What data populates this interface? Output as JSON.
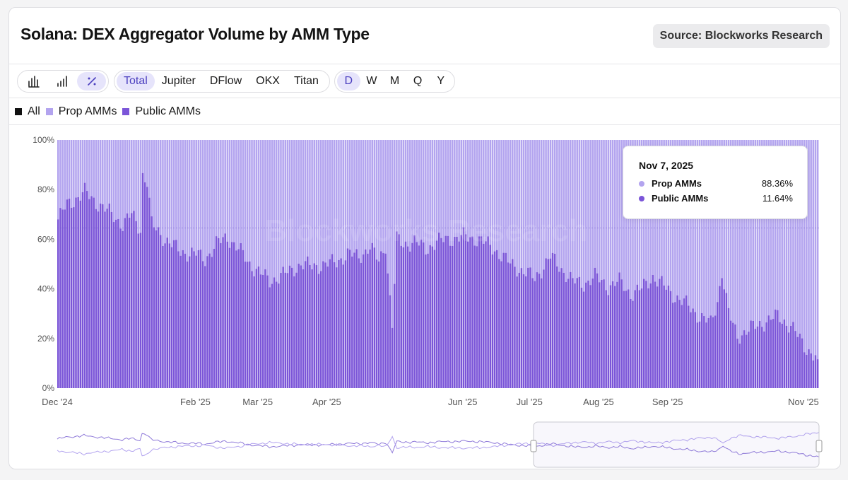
{
  "header": {
    "title": "Solana: DEX Aggregator Volume by AMM Type",
    "source": "Source: Blockworks Research"
  },
  "toolbar": {
    "chart_type_icons": [
      {
        "icon": "bar-chart-icon",
        "active": false
      },
      {
        "icon": "stacked-bar-icon",
        "active": false
      },
      {
        "icon": "percent-icon",
        "active": true
      }
    ],
    "aggregators": [
      {
        "label": "Total",
        "active": true
      },
      {
        "label": "Jupiter",
        "active": false
      },
      {
        "label": "DFlow",
        "active": false
      },
      {
        "label": "OKX",
        "active": false
      },
      {
        "label": "Titan",
        "active": false
      }
    ],
    "intervals": [
      {
        "label": "D",
        "active": true
      },
      {
        "label": "W",
        "active": false
      },
      {
        "label": "M",
        "active": false
      },
      {
        "label": "Q",
        "active": false
      },
      {
        "label": "Y",
        "active": false
      }
    ]
  },
  "legend": [
    {
      "label": "All",
      "color": "#111111"
    },
    {
      "label": "Prop AMMs",
      "color": "#b3a4ef"
    },
    {
      "label": "Public AMMs",
      "color": "#7b55d8"
    }
  ],
  "tooltip": {
    "date": "Nov 7, 2025",
    "rows": [
      {
        "name": "Prop AMMs",
        "value": "88.36%",
        "color": "#b3a4ef"
      },
      {
        "name": "Public AMMs",
        "value": "11.64%",
        "color": "#7b55d8"
      }
    ]
  },
  "watermark": "Blockworks Research",
  "chart_data": {
    "type": "bar",
    "stacked": true,
    "normalized_percent": true,
    "x_start": "2024-12-01",
    "x_end": "2025-11-07",
    "x_ticks": [
      "Dec '24",
      "Feb '25",
      "Mar '25",
      "Apr '25",
      "Jun '25",
      "Jul '25",
      "Aug '25",
      "Sep '25",
      "Nov '25"
    ],
    "x_tick_dates": [
      "2024-12-01",
      "2025-02-01",
      "2025-03-01",
      "2025-04-01",
      "2025-06-01",
      "2025-07-01",
      "2025-08-01",
      "2025-09-01",
      "2025-11-01"
    ],
    "y_ticks": [
      "0%",
      "20%",
      "40%",
      "60%",
      "80%",
      "100%"
    ],
    "ylim": [
      0,
      100
    ],
    "grid": false,
    "legend_position": "top-left",
    "series": [
      {
        "name": "Public AMMs",
        "color": "#7b55d8",
        "role": "bottom"
      },
      {
        "name": "Prop AMMs",
        "color": "#b3a4ef",
        "role": "top"
      }
    ],
    "public_amms_pct_anchors": [
      [
        "2024-12-01",
        68
      ],
      [
        "2024-12-05",
        74
      ],
      [
        "2024-12-10",
        77
      ],
      [
        "2024-12-13",
        79
      ],
      [
        "2024-12-18",
        75
      ],
      [
        "2024-12-25",
        70
      ],
      [
        "2024-12-30",
        66
      ],
      [
        "2025-01-03",
        70
      ],
      [
        "2025-01-07",
        64
      ],
      [
        "2025-01-08",
        86
      ],
      [
        "2025-01-10",
        83
      ],
      [
        "2025-01-12",
        66
      ],
      [
        "2025-01-18",
        60
      ],
      [
        "2025-01-25",
        55
      ],
      [
        "2025-02-01",
        54
      ],
      [
        "2025-02-05",
        52
      ],
      [
        "2025-02-10",
        58
      ],
      [
        "2025-02-15",
        61
      ],
      [
        "2025-02-20",
        56
      ],
      [
        "2025-02-25",
        50
      ],
      [
        "2025-03-01",
        47
      ],
      [
        "2025-03-06",
        43
      ],
      [
        "2025-03-10",
        45
      ],
      [
        "2025-03-15",
        47
      ],
      [
        "2025-03-20",
        50
      ],
      [
        "2025-03-25",
        49
      ],
      [
        "2025-04-01",
        50
      ],
      [
        "2025-04-05",
        51
      ],
      [
        "2025-04-10",
        54
      ],
      [
        "2025-04-15",
        53
      ],
      [
        "2025-04-20",
        57
      ],
      [
        "2025-04-24",
        51
      ],
      [
        "2025-04-27",
        58
      ],
      [
        "2025-04-30",
        25
      ],
      [
        "2025-05-02",
        60
      ],
      [
        "2025-05-05",
        58
      ],
      [
        "2025-05-10",
        59
      ],
      [
        "2025-05-15",
        56
      ],
      [
        "2025-05-20",
        59
      ],
      [
        "2025-05-25",
        60
      ],
      [
        "2025-06-01",
        61
      ],
      [
        "2025-06-08",
        60
      ],
      [
        "2025-06-15",
        56
      ],
      [
        "2025-06-22",
        50
      ],
      [
        "2025-06-30",
        46
      ],
      [
        "2025-07-03",
        44
      ],
      [
        "2025-07-06",
        48
      ],
      [
        "2025-07-10",
        53
      ],
      [
        "2025-07-15",
        48
      ],
      [
        "2025-07-20",
        43
      ],
      [
        "2025-07-25",
        42
      ],
      [
        "2025-07-30",
        45
      ],
      [
        "2025-08-05",
        41
      ],
      [
        "2025-08-10",
        43
      ],
      [
        "2025-08-15",
        38
      ],
      [
        "2025-08-20",
        40
      ],
      [
        "2025-08-25",
        45
      ],
      [
        "2025-08-30",
        41
      ],
      [
        "2025-09-04",
        37
      ],
      [
        "2025-09-10",
        33
      ],
      [
        "2025-09-15",
        29
      ],
      [
        "2025-09-20",
        26
      ],
      [
        "2025-09-23",
        35
      ],
      [
        "2025-09-25",
        47
      ],
      [
        "2025-09-28",
        30
      ],
      [
        "2025-10-02",
        21
      ],
      [
        "2025-10-08",
        24
      ],
      [
        "2025-10-15",
        27
      ],
      [
        "2025-10-20",
        29
      ],
      [
        "2025-10-26",
        25
      ],
      [
        "2025-11-01",
        17
      ],
      [
        "2025-11-07",
        11.64
      ]
    ]
  }
}
